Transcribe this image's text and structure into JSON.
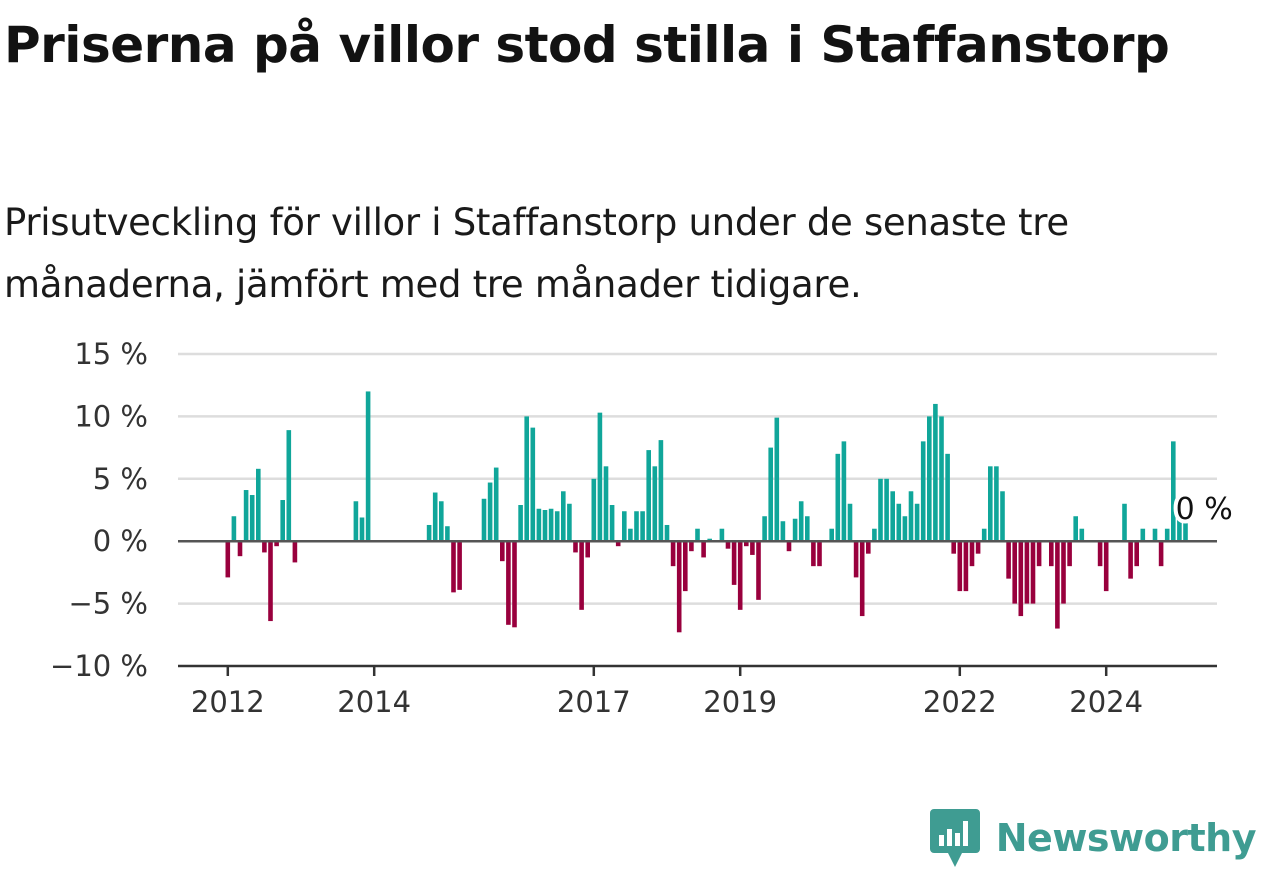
{
  "title": "Priserna på villor stod stilla i Staffanstorp",
  "subtitle": "Prisutveckling för villor i Staffanstorp under de senaste tre månaderna, jämfört med tre månader tidigare.",
  "brand": {
    "name": "Newsworthy",
    "color": "#3f9c92"
  },
  "colors": {
    "positive": "#10a69a",
    "negative": "#99003d",
    "zero_line": "#555555",
    "grid": "#dddddd"
  },
  "chart_data": {
    "type": "bar",
    "title": "Priserna på villor stod stilla i Staffanstorp",
    "subtitle": "Prisutveckling för villor i Staffanstorp under de senaste tre månaderna, jämfört med tre månader tidigare.",
    "x_start": "2012-01",
    "frequency": "monthly",
    "y_ticks": [
      15,
      10,
      5,
      0,
      -5,
      -10
    ],
    "y_tick_labels": [
      "15 %",
      "10 %",
      "5 %",
      "0 %",
      "−5 %",
      "−10 %"
    ],
    "ylim": [
      -10,
      15
    ],
    "x_tick_labels": [
      {
        "label": "2012",
        "date": "2012-01"
      },
      {
        "label": "2014",
        "date": "2014-01"
      },
      {
        "label": "2017",
        "date": "2017-01"
      },
      {
        "label": "2019",
        "date": "2019-01"
      },
      {
        "label": "2022",
        "date": "2022-01"
      },
      {
        "label": "2024",
        "date": "2024-01"
      }
    ],
    "grid": true,
    "annotation": {
      "text": "0 %",
      "value": 0
    },
    "values": [
      -2.9,
      2.0,
      -1.2,
      4.1,
      3.7,
      5.8,
      -0.9,
      -6.4,
      -0.4,
      3.3,
      8.9,
      -1.7,
      0,
      0,
      0,
      0,
      0,
      0,
      0,
      0,
      0,
      3.2,
      1.9,
      12.0,
      0,
      0,
      0,
      0,
      0,
      0,
      0,
      0,
      0,
      1.3,
      3.9,
      3.2,
      1.2,
      -4.1,
      -3.9,
      0,
      0,
      0,
      3.4,
      4.7,
      5.9,
      -1.6,
      -6.7,
      -6.9,
      2.9,
      10.0,
      9.1,
      2.6,
      2.5,
      2.6,
      2.4,
      4.0,
      3.0,
      -0.9,
      -5.5,
      -1.3,
      5.0,
      10.3,
      6.0,
      2.9,
      -0.4,
      2.4,
      1.0,
      2.4,
      2.4,
      7.3,
      6.0,
      8.1,
      1.3,
      -2.0,
      -7.3,
      -4.0,
      -0.8,
      1.0,
      -1.3,
      0.2,
      0,
      1.0,
      -0.6,
      -3.5,
      -5.5,
      -0.4,
      -1.1,
      -4.7,
      2.0,
      7.5,
      9.9,
      1.6,
      -0.8,
      1.8,
      3.2,
      2.0,
      -2.0,
      -2.0,
      0,
      1.0,
      7.0,
      8.0,
      3.0,
      -2.9,
      -6.0,
      -1.0,
      1.0,
      5.0,
      5.0,
      4.0,
      3.0,
      2.0,
      4.0,
      3.0,
      8.0,
      10.0,
      11.0,
      10.0,
      7.0,
      -1.0,
      -4.0,
      -4.0,
      -2.0,
      -1.0,
      1.0,
      6.0,
      6.0,
      4.0,
      -3.0,
      -5.0,
      -6.0,
      -5.0,
      -5.0,
      -2.0,
      0,
      -2.0,
      -7.0,
      -5.0,
      -2.0,
      2.0,
      1.0,
      0,
      0,
      -2.0,
      -4.0,
      0,
      0,
      3.0,
      -3.0,
      -2.0,
      1.0,
      0,
      1.0,
      -2.0,
      1.0,
      8.0,
      3.0,
      2.0,
      0
    ]
  }
}
